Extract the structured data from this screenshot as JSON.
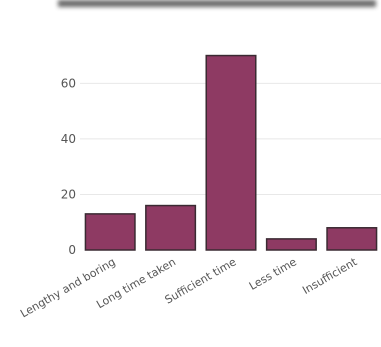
{
  "chart_data": {
    "type": "bar",
    "title": "",
    "xlabel": "",
    "ylabel": "",
    "categories": [
      "Lengthy and boring",
      "Long time taken",
      "Sufficient time",
      "Less time",
      "Insufficient"
    ],
    "values": [
      13,
      16,
      70,
      4,
      8
    ],
    "ylim": [
      0,
      72
    ],
    "yticks": [
      0,
      20,
      40,
      60
    ],
    "grid": true,
    "bar_color": "#8e3a63",
    "bar_edge_color": "#3a2a32"
  }
}
